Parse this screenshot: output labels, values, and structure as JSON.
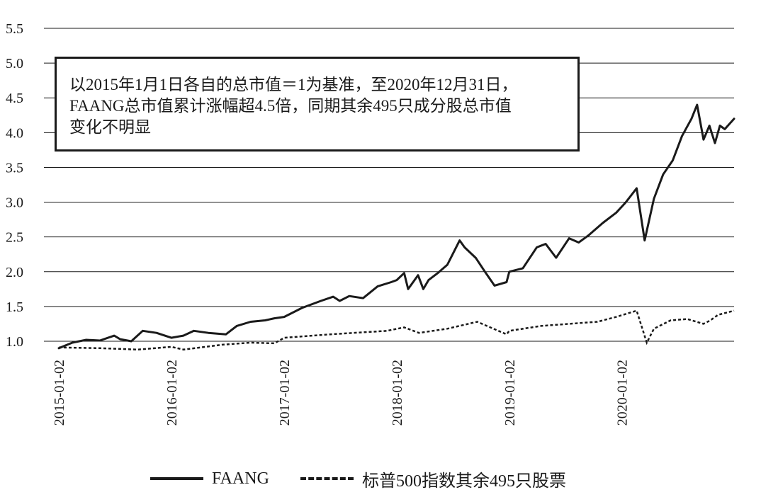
{
  "annotation": {
    "line1": "以2015年1月1日各自的总市值＝1为基准，至2020年12月31日，",
    "line2": "FAANG总市值累计涨幅超4.5倍，同期其余495只成分股总市值",
    "line3": "变化不明显"
  },
  "legend": {
    "faang_label": "FAANG",
    "rest_label": "标普500指数其余495只股票"
  },
  "colors": {
    "line": "#1a1a1a",
    "background": "#ffffff"
  },
  "chart_data": {
    "type": "line",
    "title": "",
    "xlabel": "",
    "ylabel": "",
    "ylim": [
      0.9,
      5.5
    ],
    "y_ticks": [
      "1.0",
      "1.5",
      "2.0",
      "2.5",
      "3.0",
      "3.5",
      "4.0",
      "4.5",
      "5.0",
      "5.5"
    ],
    "x_tick_labels": [
      "2015-01-02",
      "2016-01-02",
      "2017-01-02",
      "2018-01-02",
      "2019-01-02",
      "2020-01-02"
    ],
    "x_range": [
      "2015-01-02",
      "2020-12-31"
    ],
    "grid": "horizontal",
    "legend_position": "bottom",
    "series": [
      {
        "name": "FAANG",
        "style": "solid",
        "x": [
          "2015-01-02",
          "2015-02-15",
          "2015-04-01",
          "2015-05-15",
          "2015-07-01",
          "2015-07-20",
          "2015-08-25",
          "2015-10-01",
          "2015-11-15",
          "2016-01-02",
          "2016-02-10",
          "2016-03-15",
          "2016-05-01",
          "2016-06-27",
          "2016-08-01",
          "2016-09-15",
          "2016-11-01",
          "2016-12-01",
          "2017-01-02",
          "2017-03-01",
          "2017-05-01",
          "2017-06-10",
          "2017-07-01",
          "2017-08-01",
          "2017-09-15",
          "2017-11-01",
          "2017-12-15",
          "2018-01-02",
          "2018-01-26",
          "2018-02-08",
          "2018-03-12",
          "2018-03-29",
          "2018-04-15",
          "2018-05-15",
          "2018-06-15",
          "2018-07-25",
          "2018-08-10",
          "2018-09-15",
          "2018-10-15",
          "2018-11-15",
          "2018-12-24",
          "2019-01-02",
          "2019-02-15",
          "2019-04-01",
          "2019-04-30",
          "2019-06-03",
          "2019-07-15",
          "2019-08-15",
          "2019-09-15",
          "2019-11-01",
          "2019-12-15",
          "2020-01-15",
          "2020-02-19",
          "2020-03-16",
          "2020-04-15",
          "2020-05-15",
          "2020-06-15",
          "2020-07-15",
          "2020-08-15",
          "2020-09-02",
          "2020-09-23",
          "2020-10-12",
          "2020-10-30",
          "2020-11-15",
          "2020-12-01",
          "2020-12-31"
        ],
        "values": [
          0.9,
          0.98,
          1.02,
          1.01,
          1.08,
          1.03,
          1.0,
          1.15,
          1.12,
          1.05,
          1.08,
          1.15,
          1.12,
          1.1,
          1.22,
          1.28,
          1.3,
          1.33,
          1.35,
          1.48,
          1.58,
          1.64,
          1.58,
          1.65,
          1.62,
          1.79,
          1.85,
          1.88,
          1.98,
          1.75,
          1.95,
          1.75,
          1.88,
          1.98,
          2.1,
          2.45,
          2.35,
          2.2,
          2.0,
          1.8,
          1.85,
          2.0,
          2.05,
          2.35,
          2.4,
          2.2,
          2.48,
          2.42,
          2.52,
          2.7,
          2.85,
          3.0,
          3.2,
          2.45,
          3.05,
          3.4,
          3.6,
          3.95,
          4.2,
          4.4,
          3.9,
          4.1,
          3.85,
          4.1,
          4.05,
          4.2
        ]
      },
      {
        "name": "标普500指数其余495只股票",
        "style": "dashed",
        "x": [
          "2015-01-02",
          "2015-05-15",
          "2015-09-15",
          "2016-01-02",
          "2016-02-11",
          "2016-06-15",
          "2016-09-15",
          "2016-12-01",
          "2017-01-02",
          "2017-06-01",
          "2017-12-01",
          "2018-01-26",
          "2018-03-15",
          "2018-06-15",
          "2018-09-20",
          "2018-12-24",
          "2019-01-02",
          "2019-04-15",
          "2019-07-15",
          "2019-10-15",
          "2019-12-15",
          "2020-02-19",
          "2020-03-23",
          "2020-04-15",
          "2020-06-08",
          "2020-08-01",
          "2020-09-23",
          "2020-10-15",
          "2020-11-09",
          "2020-12-31"
        ],
        "values": [
          0.91,
          0.9,
          0.88,
          0.92,
          0.88,
          0.95,
          0.98,
          0.97,
          1.05,
          1.1,
          1.15,
          1.2,
          1.12,
          1.18,
          1.28,
          1.1,
          1.15,
          1.22,
          1.25,
          1.28,
          1.35,
          1.44,
          0.98,
          1.18,
          1.3,
          1.32,
          1.25,
          1.3,
          1.38,
          1.44
        ]
      }
    ]
  }
}
